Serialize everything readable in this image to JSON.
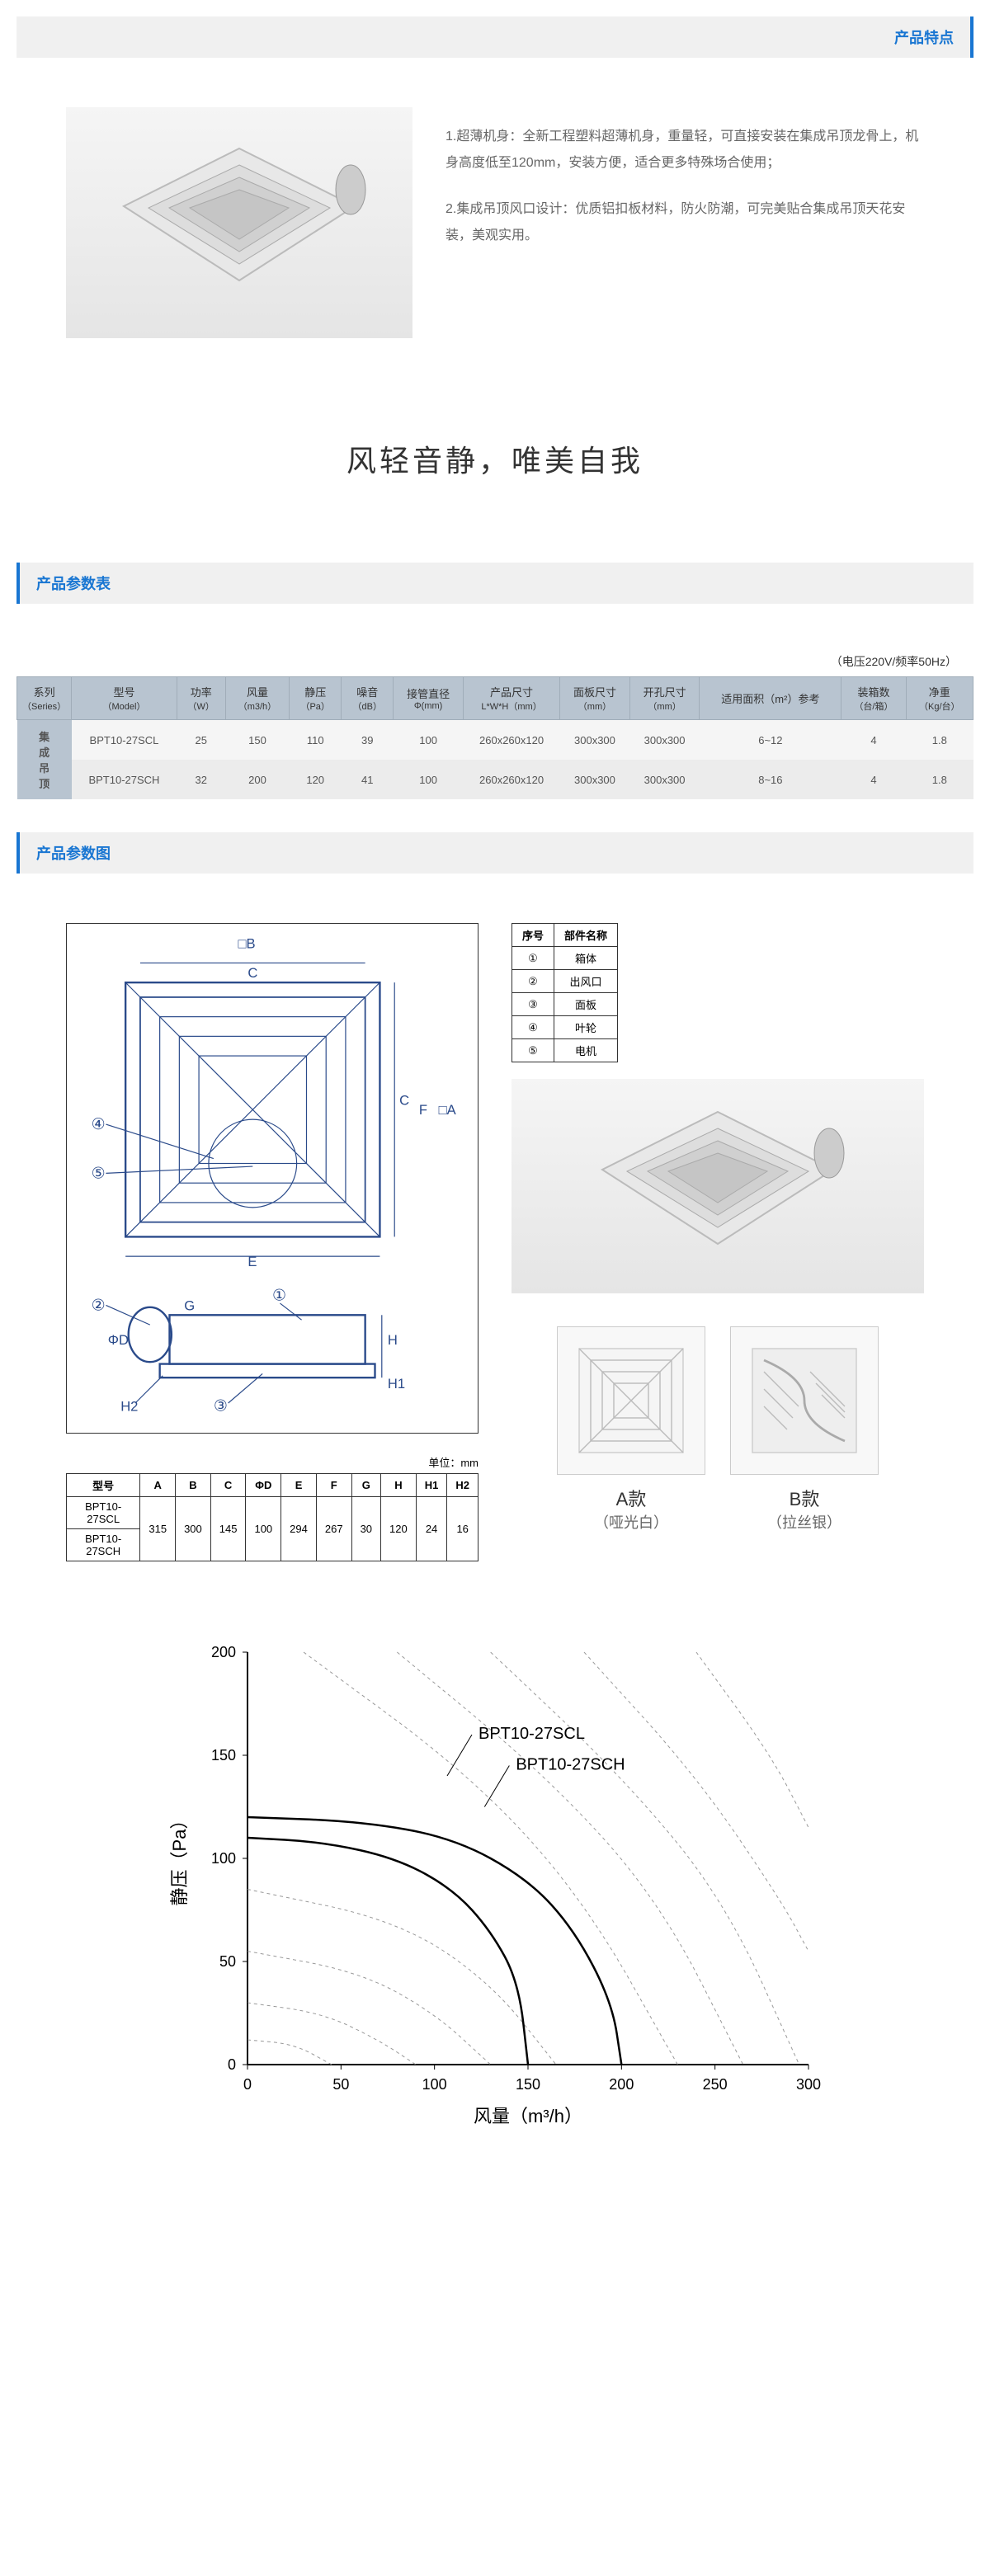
{
  "sections": {
    "features_title": "产品特点",
    "spec_table_title": "产品参数表",
    "diagram_title": "产品参数图"
  },
  "features": [
    "1.超薄机身：全新工程塑料超薄机身，重量轻，可直接安装在集成吊顶龙骨上，机身高度低至120mm，安装方便，适合更多特殊场合使用；",
    "2.集成吊顶风口设计：优质铝扣板材料，防火防潮，可完美贴合集成吊顶天花安装，美观实用。"
  ],
  "slogan": "风轻音静，唯美自我",
  "voltage_note": "（电压220V/频率50Hz）",
  "spec_table": {
    "headers": [
      {
        "main": "系列",
        "sub": "（Series）"
      },
      {
        "main": "型号",
        "sub": "（Model）"
      },
      {
        "main": "功率",
        "sub": "（W）"
      },
      {
        "main": "风量",
        "sub": "（m3/h）"
      },
      {
        "main": "静压",
        "sub": "（Pa）"
      },
      {
        "main": "噪音",
        "sub": "（dB）"
      },
      {
        "main": "接管直径",
        "sub": "Φ(mm)"
      },
      {
        "main": "产品尺寸",
        "sub": "L*W*H（mm）"
      },
      {
        "main": "面板尺寸",
        "sub": "（mm）"
      },
      {
        "main": "开孔尺寸",
        "sub": "（mm）"
      },
      {
        "main": "适用面积（m²）参考",
        "sub": ""
      },
      {
        "main": "装箱数",
        "sub": "（台/箱）"
      },
      {
        "main": "净重",
        "sub": "（Kg/台）"
      }
    ],
    "series_label": "集成吊顶",
    "rows": [
      [
        "BPT10-27SCL",
        "25",
        "150",
        "110",
        "39",
        "100",
        "260x260x120",
        "300x300",
        "300x300",
        "6~12",
        "4",
        "1.8"
      ],
      [
        "BPT10-27SCH",
        "32",
        "200",
        "120",
        "41",
        "100",
        "260x260x120",
        "300x300",
        "300x300",
        "8~16",
        "4",
        "1.8"
      ]
    ]
  },
  "parts_table": {
    "header": [
      "序号",
      "部件名称"
    ],
    "rows": [
      [
        "①",
        "箱体"
      ],
      [
        "②",
        "出风口"
      ],
      [
        "③",
        "面板"
      ],
      [
        "④",
        "叶轮"
      ],
      [
        "⑤",
        "电机"
      ]
    ]
  },
  "dim_table": {
    "unit_label": "单位：mm",
    "headers": [
      "型号",
      "A",
      "B",
      "C",
      "ΦD",
      "E",
      "F",
      "G",
      "H",
      "H1",
      "H2"
    ],
    "rows": [
      [
        "BPT10-27SCL",
        "315",
        "300",
        "145",
        "100",
        "294",
        "267",
        "30",
        "120",
        "24",
        "16"
      ],
      [
        "BPT10-27SCH",
        "315",
        "300",
        "145",
        "100",
        "294",
        "267",
        "30",
        "120",
        "24",
        "16"
      ]
    ]
  },
  "variants": [
    {
      "name": "A款",
      "desc": "（哑光白）"
    },
    {
      "name": "B款",
      "desc": "（拉丝银）"
    }
  ],
  "chart": {
    "type": "line",
    "xlabel": "风量（m³/h）",
    "ylabel": "静压（Pa）",
    "xlim": [
      0,
      300
    ],
    "xtick_step": 50,
    "ylim": [
      0,
      200
    ],
    "ytick_step": 50,
    "label_fontsize": 22,
    "tick_fontsize": 18,
    "background_color": "#ffffff",
    "axis_color": "#000000",
    "solid_line_color": "#000000",
    "dashed_line_color": "#999999",
    "solid_line_width": 2.5,
    "dashed_line_width": 1,
    "series": [
      {
        "name": "BPT10-27SCL",
        "label_pos": [
          120,
          160
        ],
        "points": [
          [
            0,
            110
          ],
          [
            40,
            108
          ],
          [
            80,
            100
          ],
          [
            110,
            85
          ],
          [
            130,
            65
          ],
          [
            145,
            40
          ],
          [
            150,
            0
          ]
        ],
        "style": "solid"
      },
      {
        "name": "BPT10-27SCH",
        "label_pos": [
          140,
          145
        ],
        "points": [
          [
            0,
            120
          ],
          [
            60,
            118
          ],
          [
            110,
            110
          ],
          [
            150,
            90
          ],
          [
            175,
            65
          ],
          [
            195,
            30
          ],
          [
            200,
            0
          ]
        ],
        "style": "solid"
      }
    ],
    "dashed_curves": [
      [
        [
          0,
          12
        ],
        [
          25,
          10
        ],
        [
          45,
          0
        ]
      ],
      [
        [
          0,
          30
        ],
        [
          40,
          25
        ],
        [
          70,
          12
        ],
        [
          90,
          0
        ]
      ],
      [
        [
          0,
          55
        ],
        [
          60,
          45
        ],
        [
          100,
          25
        ],
        [
          130,
          0
        ]
      ],
      [
        [
          0,
          85
        ],
        [
          80,
          70
        ],
        [
          130,
          40
        ],
        [
          165,
          0
        ]
      ],
      [
        [
          30,
          200
        ],
        [
          120,
          140
        ],
        [
          180,
          80
        ],
        [
          230,
          0
        ]
      ],
      [
        [
          80,
          200
        ],
        [
          160,
          140
        ],
        [
          220,
          80
        ],
        [
          265,
          0
        ]
      ],
      [
        [
          130,
          200
        ],
        [
          200,
          140
        ],
        [
          255,
          80
        ],
        [
          295,
          0
        ]
      ],
      [
        [
          180,
          200
        ],
        [
          240,
          140
        ],
        [
          285,
          80
        ],
        [
          300,
          55
        ]
      ],
      [
        [
          240,
          200
        ],
        [
          280,
          150
        ],
        [
          300,
          115
        ]
      ]
    ]
  },
  "colors": {
    "accent": "#1976d2",
    "header_bg": "#b8c4d0",
    "section_bg": "#f0f0f0"
  }
}
